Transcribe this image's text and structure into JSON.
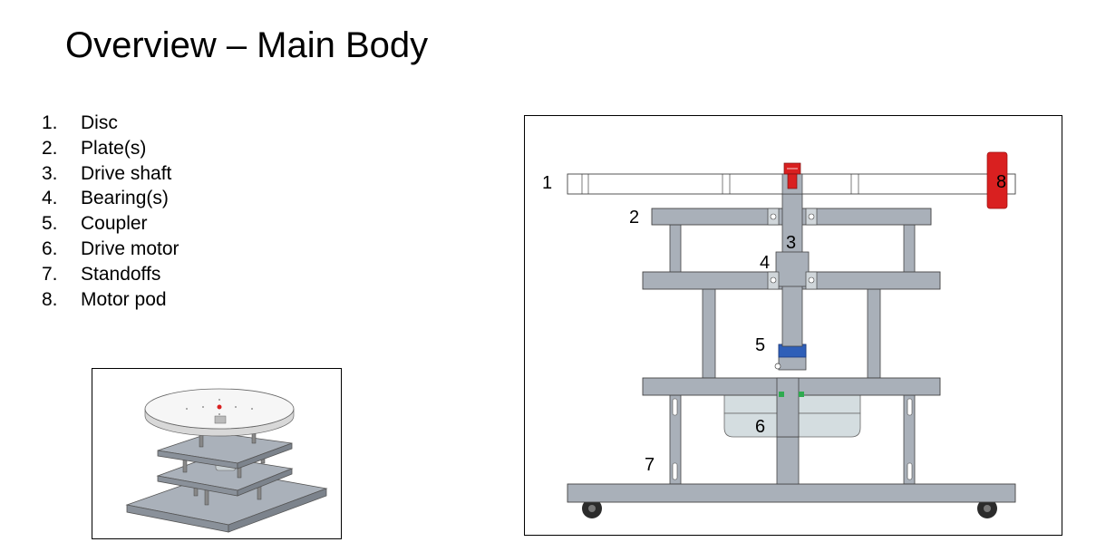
{
  "slide": {
    "title": "Overview – Main Body"
  },
  "components": [
    {
      "num": "1.",
      "label": "Disc"
    },
    {
      "num": "2.",
      "label": "Plate(s)"
    },
    {
      "num": "3.",
      "label": "Drive shaft"
    },
    {
      "num": "4.",
      "label": "Bearing(s)"
    },
    {
      "num": "5.",
      "label": "Coupler"
    },
    {
      "num": "6.",
      "label": "Drive motor"
    },
    {
      "num": "7.",
      "label": "Standoffs"
    },
    {
      "num": "8.",
      "label": "Motor pod"
    }
  ],
  "callouts": {
    "c1": "1",
    "c2": "2",
    "c3": "3",
    "c4": "4",
    "c5": "5",
    "c6": "6",
    "c7": "7",
    "c8": "8"
  },
  "colors": {
    "plate": "#a9b0b9",
    "motor_pod": "#d92020",
    "coupler": "#2f5fb8",
    "motor": "#d4dde0",
    "disc": "#ffffff"
  }
}
